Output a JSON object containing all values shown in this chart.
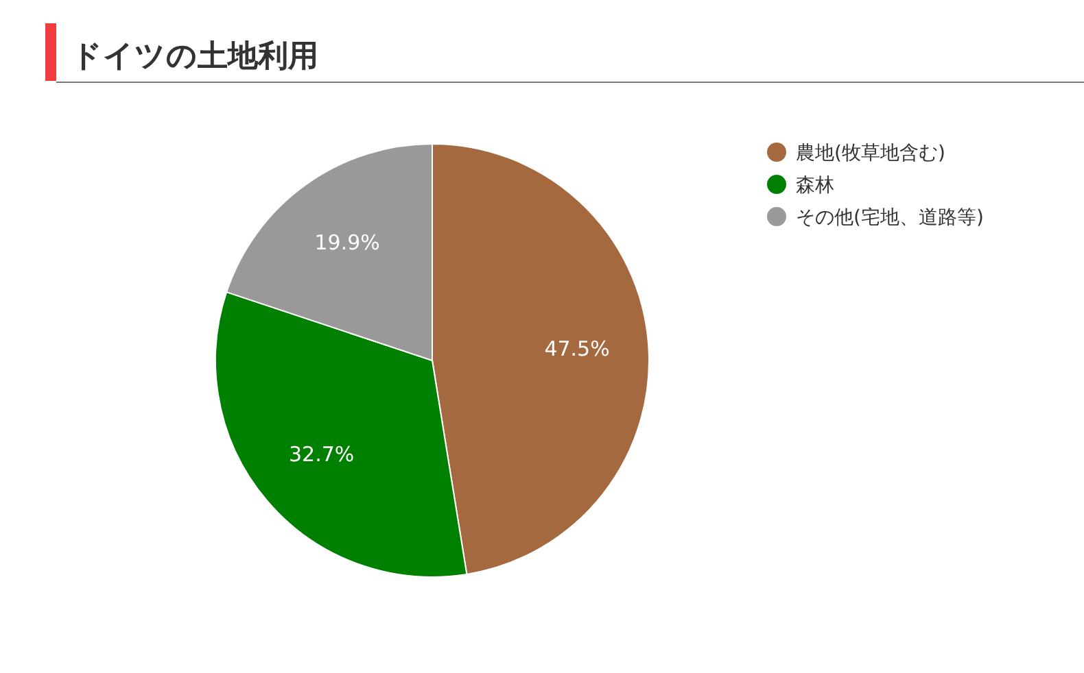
{
  "chart_data": {
    "type": "pie",
    "title": "ドイツの土地利用",
    "categories": [
      "農地(牧草地含む)",
      "森林",
      "その他(宅地、道路等)"
    ],
    "values": [
      47.5,
      32.7,
      19.9
    ],
    "value_labels": [
      "47.5%",
      "32.7%",
      "19.9%"
    ],
    "colors": [
      "#a5693f",
      "#008000",
      "#999999"
    ],
    "legend": "top right"
  }
}
